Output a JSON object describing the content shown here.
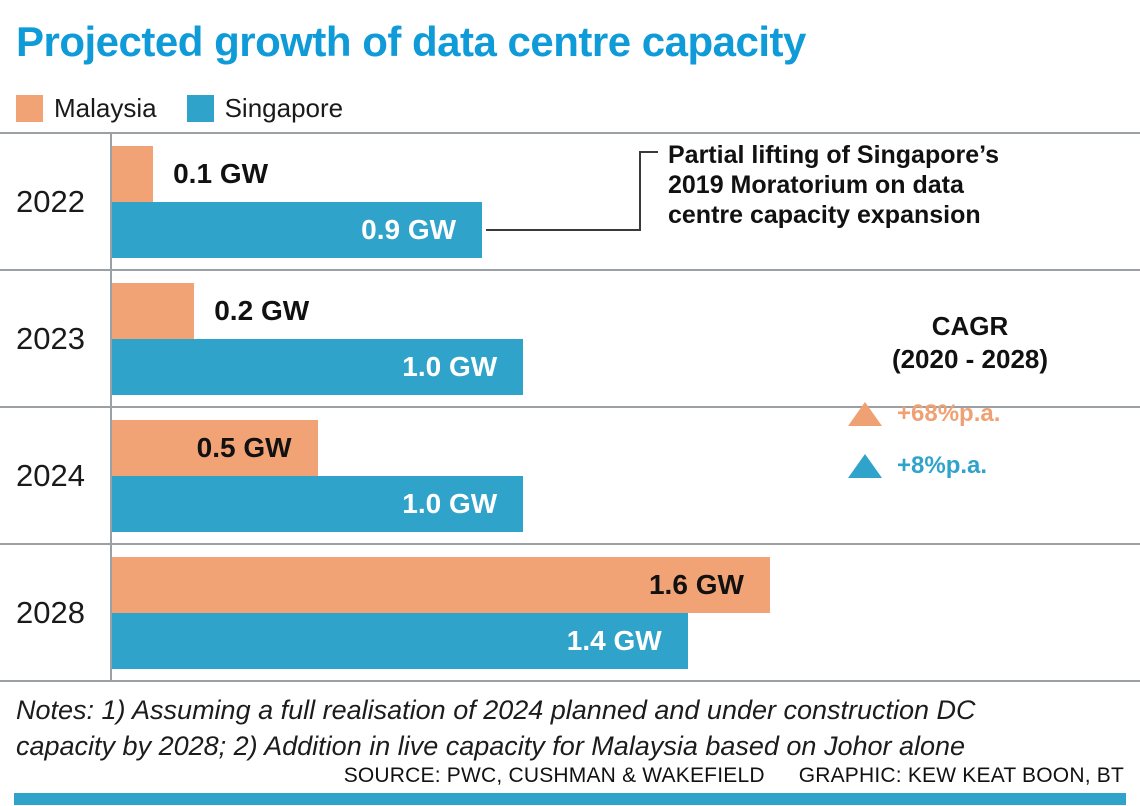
{
  "title": "Projected growth of data centre capacity",
  "colors": {
    "title": "#0e9bd8",
    "malaysia": "#f2a376",
    "singapore": "#30a3cb",
    "divider": "#9aa0a4",
    "footer_strip": "#30a3cb"
  },
  "legend": {
    "items": [
      {
        "label": "Malaysia",
        "color": "#f2a376"
      },
      {
        "label": "Singapore",
        "color": "#30a3cb"
      }
    ]
  },
  "chart_data": {
    "type": "bar",
    "orientation": "horizontal",
    "title": "Projected growth of data centre capacity",
    "unit": "GW",
    "categories": [
      "2022",
      "2023",
      "2024",
      "2028"
    ],
    "series": [
      {
        "name": "Malaysia",
        "color": "#f2a376",
        "values": [
          0.1,
          0.2,
          0.5,
          1.6
        ],
        "labels": [
          "0.1 GW",
          "0.2 GW",
          "0.5 GW",
          "1.6 GW"
        ]
      },
      {
        "name": "Singapore",
        "color": "#30a3cb",
        "values": [
          0.9,
          1.0,
          1.0,
          1.4
        ],
        "labels": [
          "0.9 GW",
          "1.0 GW",
          "1.0 GW",
          "1.4 GW"
        ]
      }
    ],
    "xlim": [
      0,
      2.5
    ],
    "grid": false,
    "legend_position": "top-left"
  },
  "annotations": {
    "moratorium": "Partial lifting of Singapore’s 2019 Moratorium on data centre capacity expansion",
    "cagr": {
      "title": "CAGR",
      "subtitle": "(2020 - 2028)",
      "items": [
        {
          "label": "+68%p.a.",
          "color": "#f0a173"
        },
        {
          "label": "+8%p.a.",
          "color": "#30a3cb"
        }
      ]
    }
  },
  "notes": "Notes: 1) Assuming a full realisation of 2024 planned and under construction DC capacity by 2028; 2) Addition in live capacity for Malaysia based on Johor alone",
  "footer": {
    "source": "SOURCE: PWC, CUSHMAN & WAKEFIELD",
    "credit": "GRAPHIC: KEW KEAT BOON, BT"
  }
}
